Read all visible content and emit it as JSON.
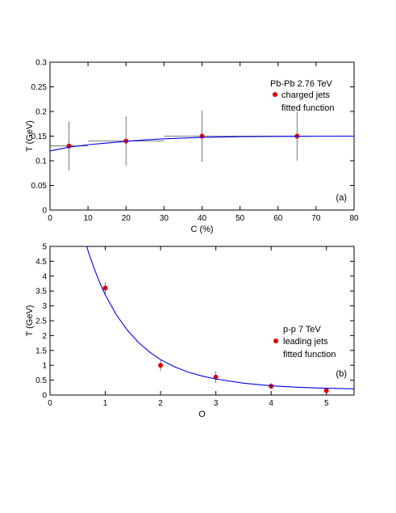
{
  "chart_data": [
    {
      "type": "scatter",
      "panel_label": "(a)",
      "xlabel": "C (%)",
      "ylabel": "T (GeV)",
      "xlim": [
        0,
        80
      ],
      "ylim": [
        0,
        0.3
      ],
      "xticks": [
        0,
        10,
        20,
        30,
        40,
        50,
        60,
        70,
        80
      ],
      "yticks": [
        0,
        0.05,
        0.1,
        0.15,
        0.2,
        0.25,
        0.3
      ],
      "xtick_labels": [
        "0",
        "10",
        "20",
        "30",
        "40",
        "50",
        "60",
        "70",
        "80"
      ],
      "ytick_labels": [
        "0",
        "0.05",
        "0.1",
        "0.15",
        "0.2",
        "0.25",
        "0.3"
      ],
      "legend_title": "Pb-Pb 2.76 TeV",
      "legend_placement": "top-right",
      "series": [
        {
          "name": "charged jets",
          "kind": "points",
          "color": "#e00000",
          "x": [
            5,
            20,
            40,
            65
          ],
          "y": [
            0.13,
            0.14,
            0.15,
            0.15
          ],
          "yerr": [
            0.05,
            0.05,
            0.052,
            0.05
          ],
          "xerr_low": [
            5,
            10,
            10,
            15
          ],
          "xerr_high": [
            5,
            10,
            10,
            15
          ]
        },
        {
          "name": "fitted function",
          "kind": "curve",
          "color": "#0000ee",
          "x": [
            0,
            5,
            10,
            15,
            20,
            25,
            30,
            40,
            50,
            60,
            70,
            80
          ],
          "y": [
            0.12,
            0.1276,
            0.1326,
            0.136,
            0.1395,
            0.1423,
            0.1445,
            0.1474,
            0.1488,
            0.1495,
            0.1498,
            0.15
          ]
        }
      ]
    },
    {
      "type": "scatter",
      "panel_label": "(b)",
      "xlabel": "O",
      "ylabel": "T (GeV)",
      "xlim": [
        0,
        5.5
      ],
      "ylim": [
        0,
        5
      ],
      "xticks": [
        0,
        1,
        2,
        3,
        4,
        5
      ],
      "yticks": [
        0,
        0.5,
        1,
        1.5,
        2,
        2.5,
        3,
        3.5,
        4,
        4.5,
        5
      ],
      "xtick_labels": [
        "0",
        "1",
        "2",
        "3",
        "4",
        "5"
      ],
      "ytick_labels": [
        "0",
        "0.5",
        "1",
        "1.5",
        "2",
        "2.5",
        "3",
        "3.5",
        "4",
        "4.5",
        "5"
      ],
      "legend_title": "p-p 7 TeV",
      "legend_placement": "right",
      "series": [
        {
          "name": "leading jets",
          "kind": "points",
          "color": "#e00000",
          "x": [
            1,
            2,
            3,
            4,
            5
          ],
          "y": [
            3.6,
            1.0,
            0.6,
            0.3,
            0.15
          ],
          "yerr": [
            0.2,
            0.2,
            0.2,
            0.1,
            0.1
          ]
        },
        {
          "name": "fitted function",
          "kind": "curve",
          "color": "#0000ee",
          "x": [
            0.65,
            0.7,
            0.8,
            0.9,
            1.0,
            1.2,
            1.4,
            1.6,
            1.8,
            2.0,
            2.25,
            2.5,
            2.75,
            3.0,
            3.5,
            4.0,
            4.5,
            5.0,
            5.5
          ],
          "y": [
            5.1,
            4.78,
            4.25,
            3.78,
            3.37,
            2.7,
            2.18,
            1.77,
            1.45,
            1.19,
            0.95,
            0.77,
            0.64,
            0.54,
            0.4,
            0.31,
            0.26,
            0.23,
            0.21
          ]
        }
      ]
    }
  ]
}
